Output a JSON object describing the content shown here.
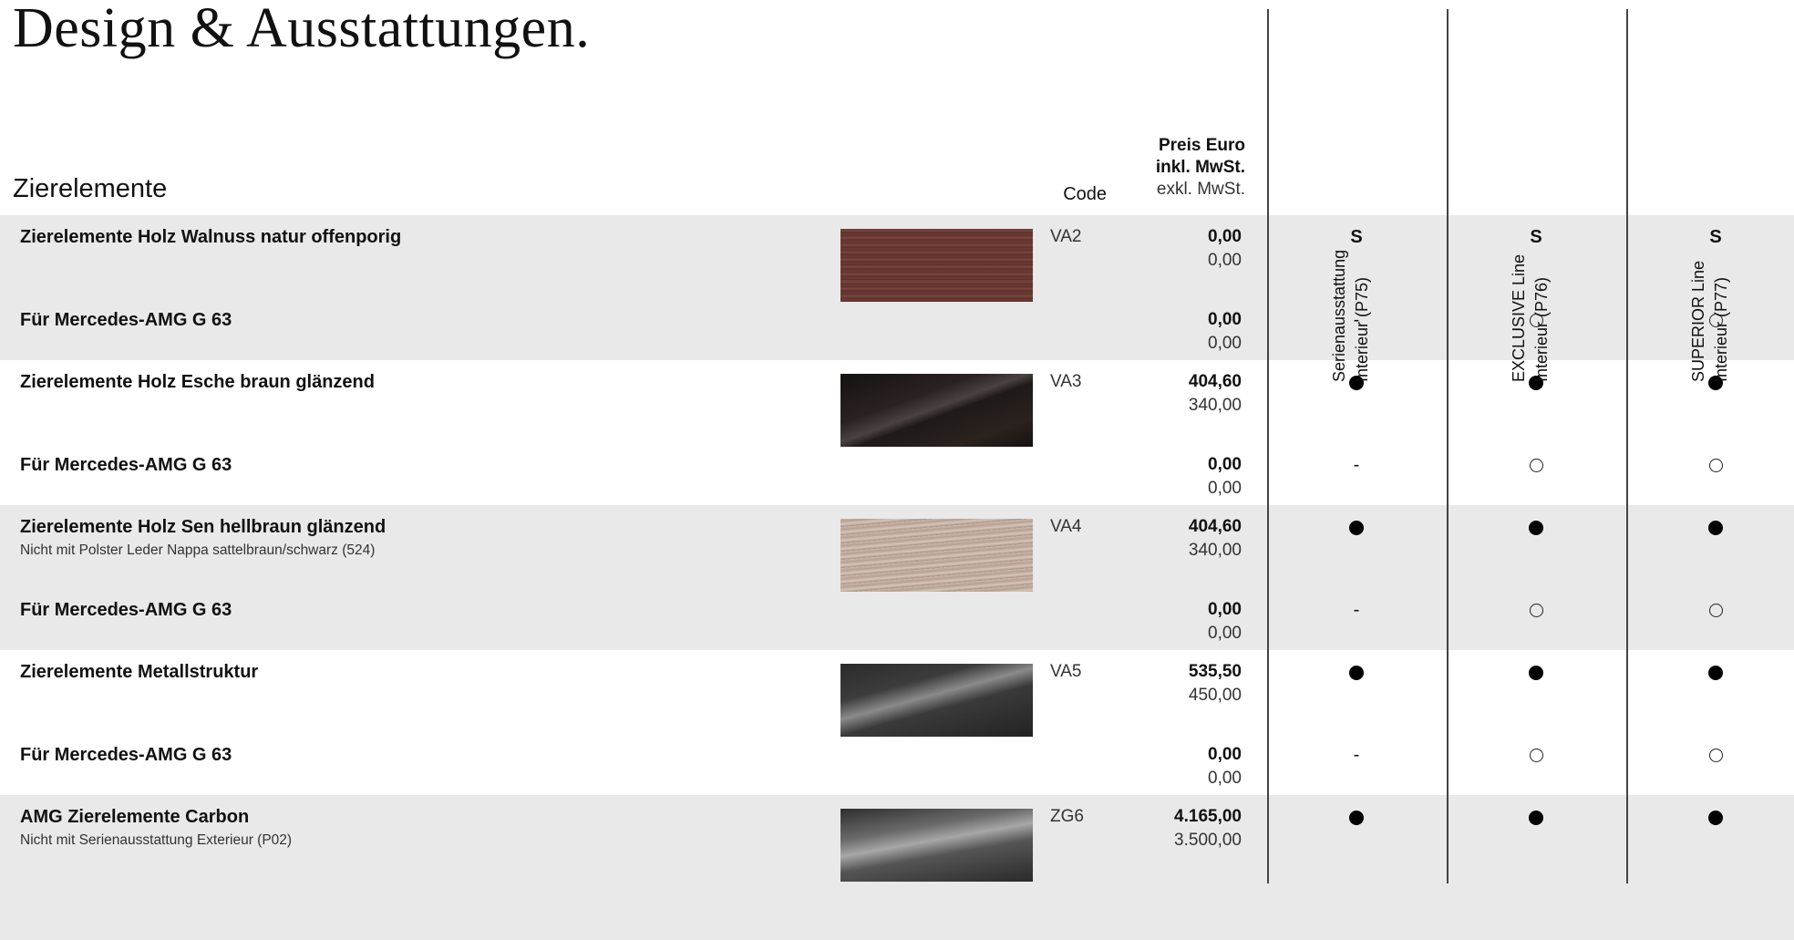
{
  "title": "Design & Ausstattungen.",
  "section_title": "Zierelemente",
  "header": {
    "code": "Code",
    "price_line1": "Preis Euro",
    "price_line2": "inkl. MwSt.",
    "price_line3": "exkl. MwSt.",
    "columns": [
      {
        "line1": "Serienausstattung",
        "line2": "Interieur (P75)"
      },
      {
        "line1": "EXCLUSIVE Line",
        "line2": "Interieur (P76)"
      },
      {
        "line1": "SUPERIOR Line",
        "line2": "Interieur (P77)"
      }
    ]
  },
  "marks": {
    "standard": "S",
    "not_available": "-",
    "optional": "●",
    "optional_amg": "○"
  },
  "rows": [
    {
      "name": "Zierelemente Holz Walnuss natur offenporig",
      "note": "",
      "code": "VA2",
      "price_incl": "0,00",
      "price_excl": "0,00",
      "marks": [
        "S",
        "S",
        "S"
      ],
      "swatch": "walnut-natur",
      "amg": {
        "name": "Für Mercedes-AMG G 63",
        "price_incl": "0,00",
        "price_excl": "0,00",
        "marks": [
          "-",
          "○",
          "○"
        ]
      }
    },
    {
      "name": "Zierelemente Holz Esche braun glänzend",
      "note": "",
      "code": "VA3",
      "price_incl": "404,60",
      "price_excl": "340,00",
      "marks": [
        "●",
        "●",
        "●"
      ],
      "swatch": "ash-brown-gloss",
      "amg": {
        "name": "Für Mercedes-AMG G 63",
        "price_incl": "0,00",
        "price_excl": "0,00",
        "marks": [
          "-",
          "○",
          "○"
        ]
      }
    },
    {
      "name": "Zierelemente Holz Sen hellbraun glänzend",
      "note": "Nicht mit Polster Leder Nappa sattelbraun/schwarz (524)",
      "code": "VA4",
      "price_incl": "404,60",
      "price_excl": "340,00",
      "marks": [
        "●",
        "●",
        "●"
      ],
      "swatch": "sen-light-brown-gloss",
      "amg": {
        "name": "Für Mercedes-AMG G 63",
        "price_incl": "0,00",
        "price_excl": "0,00",
        "marks": [
          "-",
          "○",
          "○"
        ]
      }
    },
    {
      "name": "Zierelemente Metallstruktur",
      "note": "",
      "code": "VA5",
      "price_incl": "535,50",
      "price_excl": "450,00",
      "marks": [
        "●",
        "●",
        "●"
      ],
      "swatch": "metal-structure",
      "amg": {
        "name": "Für Mercedes-AMG G 63",
        "price_incl": "0,00",
        "price_excl": "0,00",
        "marks": [
          "-",
          "○",
          "○"
        ]
      }
    },
    {
      "name": "AMG Zierelemente Carbon",
      "note": "Nicht mit Serienausstattung Exterieur (P02)",
      "code": "ZG6",
      "price_incl": "4.165,00",
      "price_excl": "3.500,00",
      "marks": [
        "●",
        "●",
        "●"
      ],
      "swatch": "carbon"
    }
  ],
  "colors": {
    "row_gray": "#e8e9e8",
    "rule": "#444444",
    "text": "#111111"
  }
}
